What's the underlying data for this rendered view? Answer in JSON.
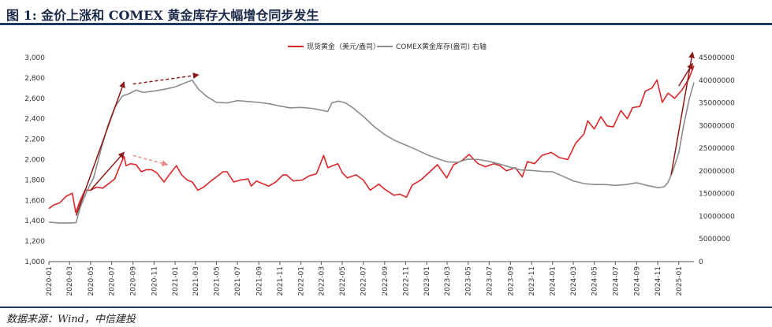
{
  "figure": {
    "title": "图 1: 金价上涨和 COMEX 黄金库存大幅增仓同步发生",
    "source": "数据来源：Wind，中信建投"
  },
  "colors": {
    "gold": "#d9262a",
    "stock": "#8c8c8c",
    "arrow_dark": "#8b1a1a",
    "arrow_light": "#e88a8a",
    "frame": "#1f3a60"
  },
  "chart_data": {
    "type": "line",
    "legend": [
      "现货黄金（美元/盎司）",
      "COMEX黄金库存(盎司) 右轴"
    ],
    "legend_position": "top-center",
    "grid": false,
    "x_ticks": [
      "2020-01",
      "2020-03",
      "2020-05",
      "2020-07",
      "2020-09",
      "2020-11",
      "2021-01",
      "2021-03",
      "2021-05",
      "2021-07",
      "2021-09",
      "2021-11",
      "2022-01",
      "2022-03",
      "2022-05",
      "2022-07",
      "2022-09",
      "2022-11",
      "2023-01",
      "2023-03",
      "2023-05",
      "2023-07",
      "2023-09",
      "2023-11",
      "2024-01",
      "2024-03",
      "2024-05",
      "2024-07",
      "2024-09",
      "2024-11",
      "2025-01"
    ],
    "y_left": {
      "ticks": [
        "1,000",
        "1,200",
        "1,400",
        "1,600",
        "1,800",
        "2,000",
        "2,200",
        "2,400",
        "2,600",
        "2,800",
        "3,000"
      ],
      "lim": [
        1000,
        3000
      ]
    },
    "y_right": {
      "ticks": [
        "0",
        "5000000",
        "10000000",
        "15000000",
        "20000000",
        "25000000",
        "30000000",
        "35000000",
        "40000000",
        "45000000"
      ],
      "lim": [
        0,
        45000000
      ]
    },
    "x_range": [
      "2020-01-01",
      "2025-02-14"
    ],
    "series": [
      {
        "name": "现货黄金（美元/盎司）",
        "axis": "left",
        "x": [
          "2020-01-01",
          "2020-01-15",
          "2020-02-01",
          "2020-02-20",
          "2020-03-09",
          "2020-03-19",
          "2020-04-01",
          "2020-04-15",
          "2020-05-01",
          "2020-05-18",
          "2020-06-05",
          "2020-06-25",
          "2020-07-10",
          "2020-07-24",
          "2020-08-06",
          "2020-08-12",
          "2020-08-25",
          "2020-09-10",
          "2020-09-25",
          "2020-10-10",
          "2020-10-25",
          "2020-11-09",
          "2020-11-30",
          "2020-12-15",
          "2021-01-05",
          "2021-01-20",
          "2021-02-05",
          "2021-02-20",
          "2021-03-08",
          "2021-03-25",
          "2021-04-15",
          "2021-05-01",
          "2021-05-20",
          "2021-06-01",
          "2021-06-20",
          "2021-07-10",
          "2021-08-01",
          "2021-08-10",
          "2021-08-25",
          "2021-09-15",
          "2021-09-30",
          "2021-10-20",
          "2021-11-10",
          "2021-11-20",
          "2021-12-10",
          "2022-01-05",
          "2022-01-25",
          "2022-02-15",
          "2022-03-08",
          "2022-03-20",
          "2022-04-18",
          "2022-05-01",
          "2022-05-16",
          "2022-06-10",
          "2022-07-01",
          "2022-07-21",
          "2022-08-15",
          "2022-09-01",
          "2022-09-28",
          "2022-10-15",
          "2022-11-03",
          "2022-11-20",
          "2022-12-15",
          "2023-01-10",
          "2023-02-01",
          "2023-02-28",
          "2023-03-20",
          "2023-04-13",
          "2023-05-04",
          "2023-05-30",
          "2023-06-20",
          "2023-07-15",
          "2023-08-01",
          "2023-08-20",
          "2023-09-15",
          "2023-10-05",
          "2023-10-20",
          "2023-11-10",
          "2023-12-01",
          "2023-12-28",
          "2024-01-20",
          "2024-02-14",
          "2024-03-08",
          "2024-04-01",
          "2024-04-12",
          "2024-05-01",
          "2024-05-20",
          "2024-06-07",
          "2024-06-25",
          "2024-07-17",
          "2024-08-05",
          "2024-08-20",
          "2024-09-10",
          "2024-09-26",
          "2024-10-15",
          "2024-10-30",
          "2024-11-14",
          "2024-12-01",
          "2024-12-20",
          "2025-01-10",
          "2025-01-30",
          "2025-02-14"
        ],
        "y": [
          1520,
          1555,
          1575,
          1640,
          1670,
          1480,
          1600,
          1700,
          1700,
          1730,
          1720,
          1770,
          1810,
          1930,
          2030,
          1940,
          1960,
          1950,
          1880,
          1900,
          1900,
          1870,
          1780,
          1850,
          1940,
          1850,
          1800,
          1780,
          1700,
          1730,
          1790,
          1830,
          1880,
          1880,
          1780,
          1800,
          1810,
          1740,
          1790,
          1760,
          1740,
          1780,
          1850,
          1850,
          1790,
          1800,
          1840,
          1860,
          2040,
          1920,
          1960,
          1870,
          1820,
          1850,
          1800,
          1700,
          1760,
          1710,
          1650,
          1660,
          1630,
          1750,
          1800,
          1880,
          1950,
          1820,
          1950,
          1990,
          2050,
          1960,
          1930,
          1960,
          1940,
          1890,
          1920,
          1830,
          1980,
          1960,
          2040,
          2070,
          2020,
          2000,
          2160,
          2250,
          2380,
          2300,
          2420,
          2330,
          2320,
          2480,
          2400,
          2510,
          2520,
          2670,
          2700,
          2780,
          2560,
          2650,
          2600,
          2680,
          2790,
          2920
        ]
      },
      {
        "name": "COMEX黄金库存(盎司) 右轴",
        "axis": "right",
        "x": [
          "2020-01-01",
          "2020-02-01",
          "2020-03-01",
          "2020-03-20",
          "2020-04-01",
          "2020-04-20",
          "2020-05-10",
          "2020-06-01",
          "2020-06-20",
          "2020-07-10",
          "2020-08-01",
          "2020-08-20",
          "2020-09-10",
          "2020-10-01",
          "2020-11-01",
          "2020-12-01",
          "2021-01-01",
          "2021-02-01",
          "2021-02-20",
          "2021-03-10",
          "2021-04-01",
          "2021-05-01",
          "2021-06-01",
          "2021-07-01",
          "2021-08-01",
          "2021-09-01",
          "2021-10-01",
          "2021-11-01",
          "2021-12-01",
          "2022-01-01",
          "2022-02-01",
          "2022-03-01",
          "2022-03-20",
          "2022-04-01",
          "2022-04-20",
          "2022-05-10",
          "2022-06-01",
          "2022-07-01",
          "2022-08-01",
          "2022-09-01",
          "2022-10-01",
          "2022-11-01",
          "2022-12-01",
          "2023-01-01",
          "2023-02-01",
          "2023-03-01",
          "2023-04-01",
          "2023-05-01",
          "2023-06-01",
          "2023-07-01",
          "2023-08-01",
          "2023-09-01",
          "2023-10-01",
          "2023-11-01",
          "2023-12-01",
          "2024-01-01",
          "2024-02-01",
          "2024-03-01",
          "2024-04-01",
          "2024-05-01",
          "2024-06-01",
          "2024-07-01",
          "2024-08-01",
          "2024-09-01",
          "2024-10-01",
          "2024-11-01",
          "2024-11-20",
          "2024-12-01",
          "2024-12-15",
          "2025-01-01",
          "2025-01-15",
          "2025-02-01",
          "2025-02-14"
        ],
        "y": [
          8700000,
          8500000,
          8500000,
          8600000,
          12000000,
          15500000,
          18500000,
          25000000,
          30000000,
          34000000,
          36500000,
          37000000,
          37800000,
          37300000,
          37600000,
          38000000,
          38500000,
          39500000,
          40000000,
          38000000,
          36500000,
          35100000,
          35000000,
          35500000,
          35300000,
          35100000,
          34800000,
          34300000,
          33900000,
          34000000,
          33800000,
          33400000,
          33100000,
          35000000,
          35400000,
          35000000,
          33900000,
          32000000,
          29800000,
          28000000,
          26700000,
          25700000,
          24700000,
          23600000,
          22700000,
          22000000,
          21900000,
          22600000,
          22500000,
          22100000,
          21500000,
          20800000,
          20200000,
          20100000,
          19900000,
          19800000,
          18800000,
          17800000,
          17200000,
          17000000,
          17000000,
          16800000,
          17000000,
          17400000,
          16800000,
          16300000,
          16500000,
          17500000,
          20000000,
          24000000,
          30000000,
          36000000,
          39500000
        ]
      }
    ],
    "annotations": [
      {
        "type": "arrow",
        "style": "solid",
        "color": "arrow_dark",
        "from": [
          "2020-03-20",
          1450
        ],
        "to": [
          "2020-08-06",
          2760
        ],
        "desc": "gold & stock surge 2020"
      },
      {
        "type": "arrow",
        "style": "solid",
        "color": "arrow_dark",
        "from": [
          "2020-05-01",
          1700
        ],
        "to": [
          "2020-08-06",
          2070
        ]
      },
      {
        "type": "arrow",
        "style": "dashed",
        "color": "arrow_dark",
        "from": [
          "2020-09-01",
          2740
        ],
        "to": [
          "2021-03-10",
          2830
        ]
      },
      {
        "type": "arrow",
        "style": "dashed",
        "color": "arrow_light",
        "from": [
          "2020-09-01",
          2040
        ],
        "to": [
          "2020-12-10",
          1950
        ]
      },
      {
        "type": "arrow",
        "style": "solid",
        "color": "arrow_dark",
        "from": [
          "2024-12-10",
          1850
        ],
        "to": [
          "2025-02-10",
          3050
        ]
      },
      {
        "type": "arrow",
        "style": "solid",
        "color": "arrow_dark",
        "from": [
          "2025-01-01",
          2720
        ],
        "to": [
          "2025-02-10",
          2940
        ]
      }
    ]
  }
}
